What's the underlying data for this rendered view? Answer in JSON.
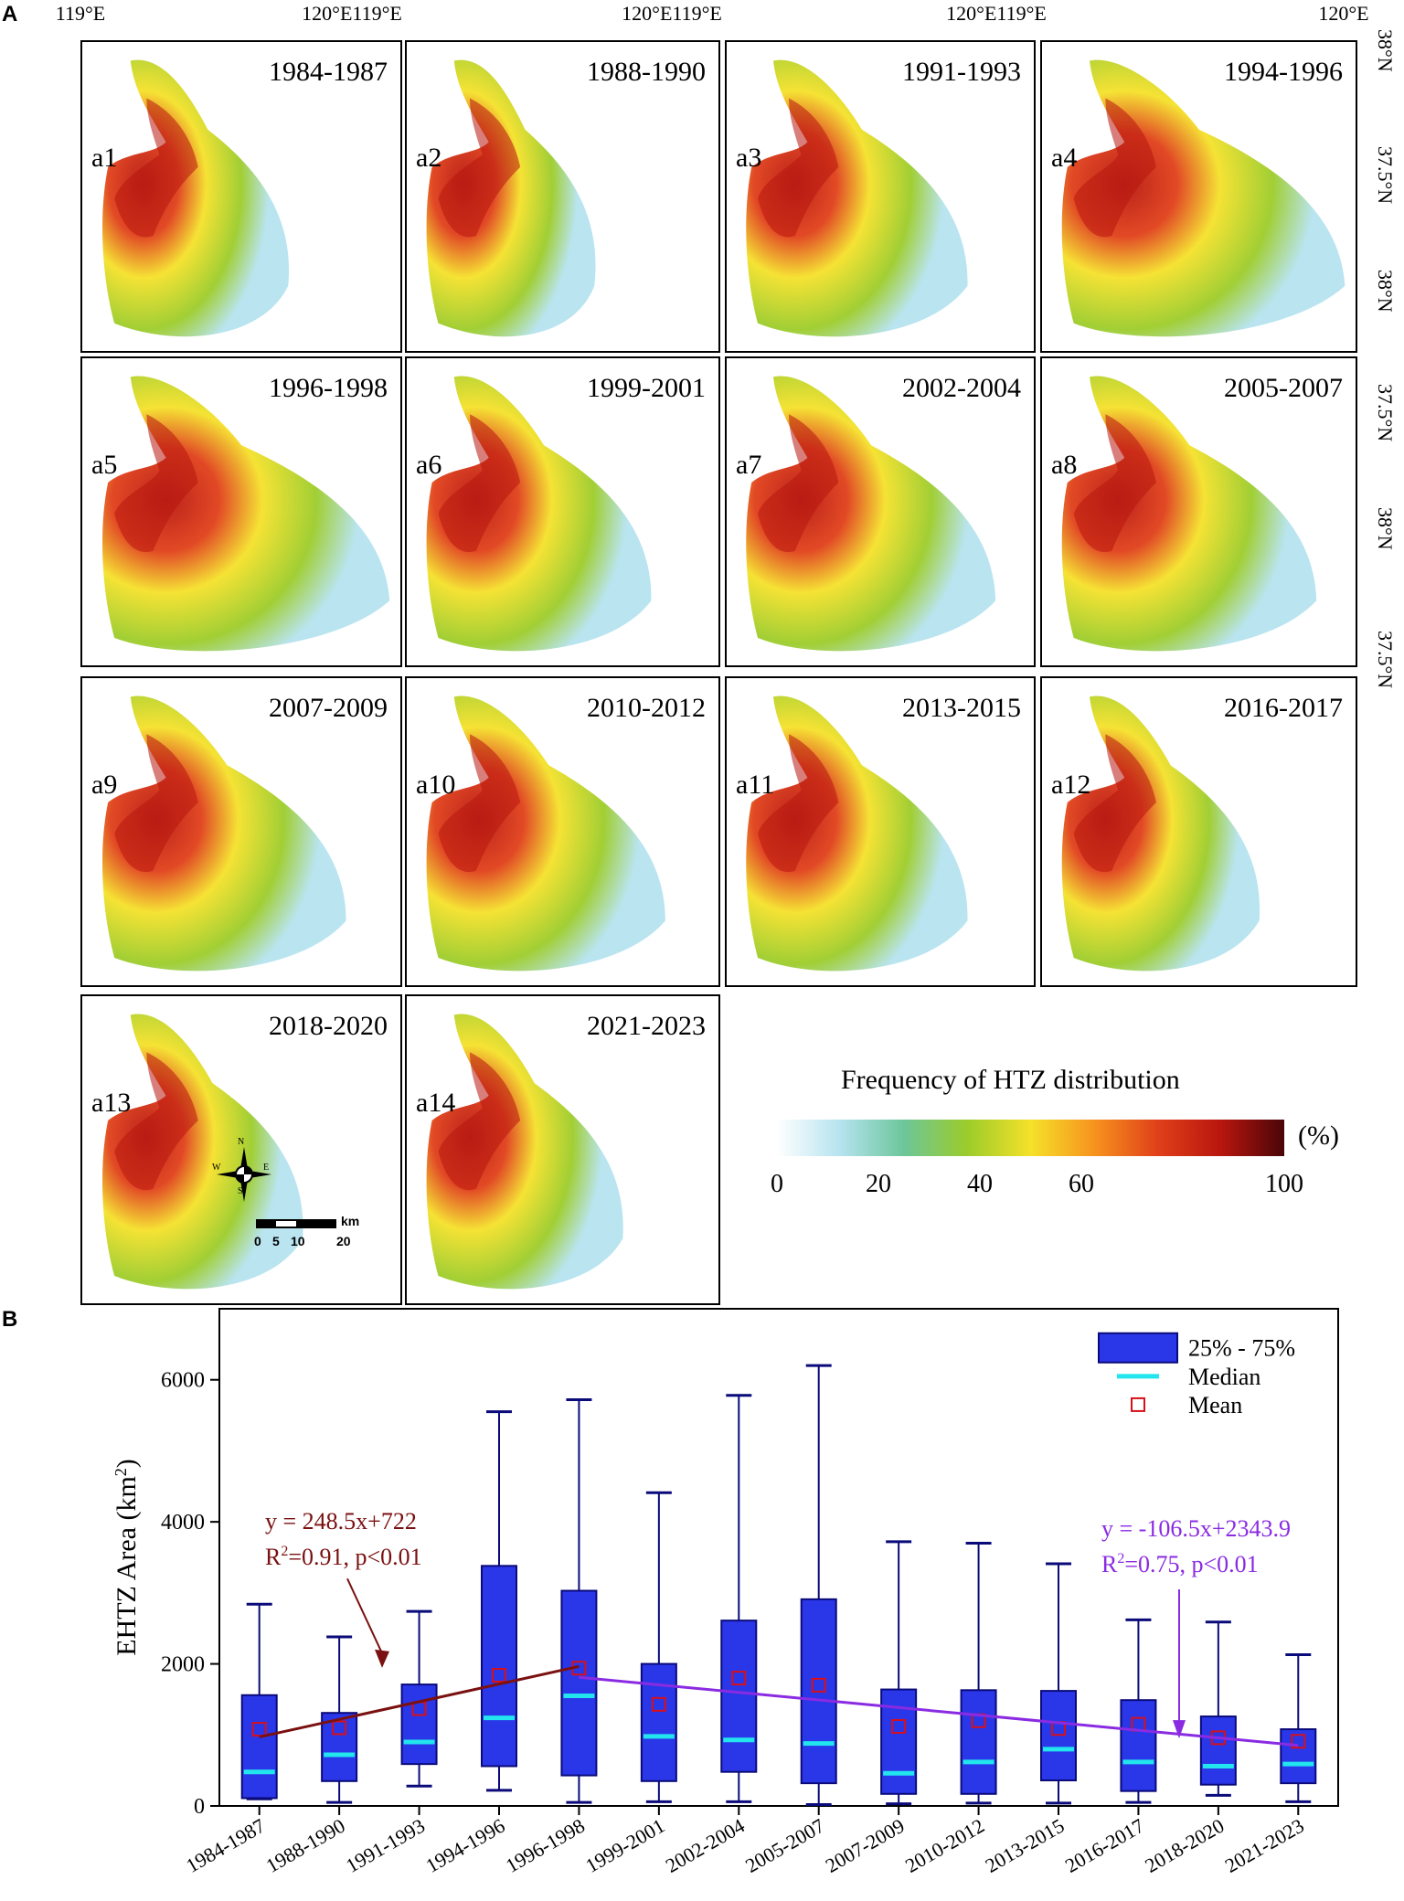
{
  "panel_a_letter": "A",
  "panel_b_letter": "B",
  "lon_labels": [
    "119°E",
    "120°E119°E",
    "120°E119°E",
    "120°E119°E",
    "120°E"
  ],
  "lat_labels": [
    "38°N",
    "37.5°N"
  ],
  "maps": [
    {
      "id": "a1",
      "period": "1984-1987"
    },
    {
      "id": "a2",
      "period": "1988-1990"
    },
    {
      "id": "a3",
      "period": "1991-1993"
    },
    {
      "id": "a4",
      "period": "1994-1996"
    },
    {
      "id": "a5",
      "period": "1996-1998"
    },
    {
      "id": "a6",
      "period": "1999-2001"
    },
    {
      "id": "a7",
      "period": "2002-2004"
    },
    {
      "id": "a8",
      "period": "2005-2007"
    },
    {
      "id": "a9",
      "period": "2007-2009"
    },
    {
      "id": "a10",
      "period": "2010-2012"
    },
    {
      "id": "a11",
      "period": "2013-2015"
    },
    {
      "id": "a12",
      "period": "2016-2017"
    },
    {
      "id": "a13",
      "period": "2018-2020"
    },
    {
      "id": "a14",
      "period": "2021-2023"
    }
  ],
  "colorbar": {
    "title": "Frequency of HTZ distribution",
    "unit": "(%)",
    "ticks": [
      "0",
      "20",
      "40",
      "60",
      "100"
    ],
    "tick_values": [
      0,
      20,
      40,
      60,
      100
    ],
    "colors": [
      "#ffffff",
      "#b5e3ef",
      "#6cc69a",
      "#9ccc2a",
      "#f5e12a",
      "#f7931e",
      "#e0401a",
      "#b8160e",
      "#4a0508"
    ]
  },
  "compass": {
    "n": "N",
    "s": "S",
    "e": "E",
    "w": "W"
  },
  "scale_bar": {
    "unit": "km",
    "ticks": [
      "0",
      "5",
      "10",
      "20"
    ]
  },
  "chart_data": {
    "type": "box",
    "categories": [
      "1984-1987",
      "1988-1990",
      "1991-1993",
      "1994-1996",
      "1996-1998",
      "1999-2001",
      "2002-2004",
      "2005-2007",
      "2007-2009",
      "2010-2012",
      "2013-2015",
      "2016-2017",
      "2018-2020",
      "2021-2023"
    ],
    "ylabel": "EHTZ Area (km",
    "ylabel_sup": "2",
    "ylabel_close": ")",
    "ylim": [
      0,
      7000
    ],
    "yticks": [
      0,
      2000,
      4000,
      6000
    ],
    "boxes": [
      {
        "min": 100,
        "q1": 110,
        "median": 480,
        "q3": 1560,
        "max": 2840,
        "mean": 1080
      },
      {
        "min": 50,
        "q1": 350,
        "median": 720,
        "q3": 1310,
        "max": 2380,
        "mean": 1100
      },
      {
        "min": 280,
        "q1": 590,
        "median": 900,
        "q3": 1710,
        "max": 2740,
        "mean": 1370
      },
      {
        "min": 220,
        "q1": 560,
        "median": 1240,
        "q3": 3380,
        "max": 5550,
        "mean": 1840
      },
      {
        "min": 50,
        "q1": 430,
        "median": 1550,
        "q3": 3030,
        "max": 5720,
        "mean": 1940
      },
      {
        "min": 60,
        "q1": 350,
        "median": 980,
        "q3": 2000,
        "max": 4410,
        "mean": 1430
      },
      {
        "min": 60,
        "q1": 480,
        "median": 930,
        "q3": 2610,
        "max": 5780,
        "mean": 1800
      },
      {
        "min": 20,
        "q1": 320,
        "median": 880,
        "q3": 2910,
        "max": 6200,
        "mean": 1700
      },
      {
        "min": 30,
        "q1": 170,
        "median": 460,
        "q3": 1640,
        "max": 3720,
        "mean": 1120
      },
      {
        "min": 40,
        "q1": 170,
        "median": 620,
        "q3": 1630,
        "max": 3700,
        "mean": 1200
      },
      {
        "min": 40,
        "q1": 360,
        "median": 800,
        "q3": 1620,
        "max": 3410,
        "mean": 1090
      },
      {
        "min": 50,
        "q1": 210,
        "median": 620,
        "q3": 1490,
        "max": 2620,
        "mean": 1150
      },
      {
        "min": 150,
        "q1": 300,
        "median": 560,
        "q3": 1260,
        "max": 2590,
        "mean": 960
      },
      {
        "min": 60,
        "q1": 320,
        "median": 590,
        "q3": 1080,
        "max": 2130,
        "mean": 910
      }
    ],
    "trend_lines": [
      {
        "from_index": 0,
        "to_index": 4,
        "y_start": 970.5,
        "y_end": 1964.5,
        "color": "#7a1010",
        "equation": "y = 248.5x+722",
        "r2_prefix": "R",
        "r2_sup": "2",
        "r2_rest": "=0.91, p<0.01"
      },
      {
        "from_index": 4,
        "to_index": 13,
        "y_start": 1811.4,
        "y_end": 852.9,
        "color": "#8a2be2",
        "equation": "y = -106.5x+2343.9",
        "r2_prefix": "R",
        "r2_sup": "2",
        "r2_rest": "=0.75, p<0.01"
      }
    ],
    "legend": [
      {
        "kind": "box",
        "label": "25% - 75%"
      },
      {
        "kind": "median",
        "label": "Median"
      },
      {
        "kind": "mean",
        "label": "Mean"
      }
    ],
    "colors": {
      "box_fill": "#2a37e8",
      "box_edge": "#0a0a7a",
      "median": "#22e5ee",
      "mean": "#d8101a",
      "whisker": "#0a0a7a"
    }
  }
}
